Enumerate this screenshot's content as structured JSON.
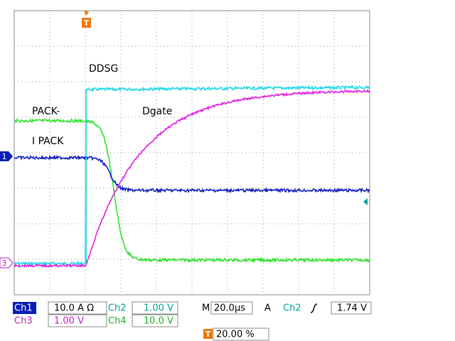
{
  "labels": {
    "ddsg": "DDSG",
    "pack": "PACK-",
    "dgate": "Dgate",
    "ipack": "I PACK"
  },
  "markers": {
    "ch1": "1",
    "ch3": "3",
    "trigger_top": "T",
    "trigger_bottom": "T"
  },
  "status": {
    "ch1": {
      "name": "Ch1",
      "scale": "10.0 A Ω"
    },
    "ch2": {
      "name": "Ch2",
      "scale": "1.00 V"
    },
    "ch3": {
      "name": "Ch3",
      "scale": "1.00 V"
    },
    "ch4": {
      "name": "Ch4",
      "scale": "10.0 V"
    },
    "timebase": {
      "label": "M",
      "value": "20.0µs"
    },
    "trigger": {
      "mode": "A",
      "source": "Ch2",
      "level": "1.74 V"
    },
    "position": "20.00 %"
  }
}
